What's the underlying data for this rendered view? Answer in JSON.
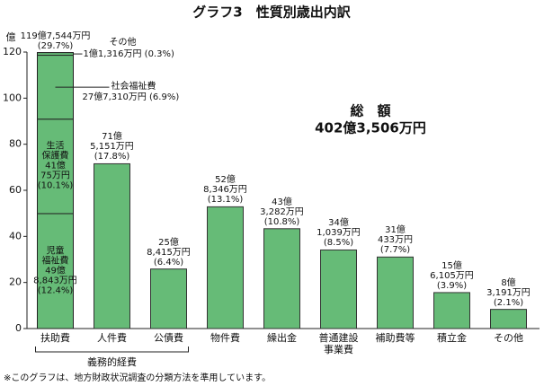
{
  "chart_data": {
    "type": "bar",
    "title": "グラフ3　性質別歳出内訳",
    "ylabel": "億",
    "categories": [
      "扶助費",
      "人件費",
      "公債費",
      "物件費",
      "繰出金",
      "普通建設\n事業費",
      "補助費等",
      "積立金",
      "その他"
    ],
    "values": [
      119.7544,
      71.5151,
      25.8415,
      52.8346,
      43.3282,
      34.1039,
      31.0433,
      15.6105,
      8.3191
    ],
    "value_labels": [
      "119億7,544万円\n(29.7%)",
      "71億\n5,151万円\n(17.8%)",
      "25億\n8,415万円\n(6.4%)",
      "52億\n8,346万円\n(13.1%)",
      "43億\n3,282万円\n(10.8%)",
      "34億\n1,039万円\n(8.5%)",
      "31億\n433万円\n(7.7%)",
      "15億\n6,105万円\n(3.9%)",
      "8億\n3,191万円\n(2.1%)"
    ],
    "color": "#66bb77",
    "ylim": [
      0,
      120
    ],
    "yticks": [
      0,
      20,
      40,
      60,
      80,
      100,
      120
    ],
    "breakdown": [
      {
        "name": "児童\n福祉費",
        "value": 49.8843,
        "value_label": "49億\n8,843万円\n(12.4%)"
      },
      {
        "name": "生活\n保護費",
        "value": 41.0075,
        "value_label": "41億\n75万円\n(10.1%)"
      },
      {
        "name": "社会福祉費",
        "value": 27.731,
        "value_label": "27億7,310万円 (6.9%)"
      },
      {
        "name": "その他",
        "value": 1.1316,
        "value_label": "1億1,316万円 (0.3%)"
      }
    ],
    "group_label": "義務的経費",
    "total": {
      "label": "総　額",
      "value": 402.3506,
      "value_label": "402億3,506万円"
    },
    "note": "※このグラフは、地方財政状況調査の分類方法を準用しています。"
  }
}
